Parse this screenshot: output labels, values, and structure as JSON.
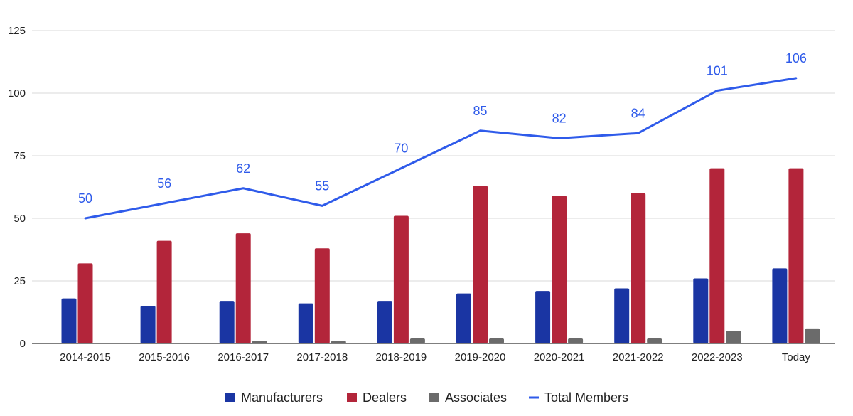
{
  "chart_data": {
    "type": "bar",
    "categories": [
      "2014-2015",
      "2015-2016",
      "2016-2017",
      "2017-2018",
      "2018-2019",
      "2019-2020",
      "2020-2021",
      "2021-2022",
      "2022-2023",
      "Today"
    ],
    "series": [
      {
        "name": "Manufacturers",
        "kind": "bar",
        "color": "#1a35a3",
        "values": [
          18,
          15,
          17,
          16,
          17,
          20,
          21,
          22,
          26,
          30
        ]
      },
      {
        "name": "Dealers",
        "kind": "bar",
        "color": "#b3253a",
        "values": [
          32,
          41,
          44,
          38,
          51,
          63,
          59,
          60,
          70,
          70
        ]
      },
      {
        "name": "Associates",
        "kind": "bar",
        "color": "#6b6b6b",
        "values": [
          0,
          0,
          1,
          1,
          2,
          2,
          2,
          2,
          5,
          6
        ]
      },
      {
        "name": "Total Members",
        "kind": "line",
        "color": "#2f5bea",
        "values": [
          50,
          56,
          62,
          55,
          70,
          85,
          82,
          84,
          101,
          106
        ],
        "data_labels": [
          "50",
          "56",
          "62",
          "55",
          "70",
          "85",
          "82",
          "84",
          "101",
          "106"
        ]
      }
    ],
    "yticks": [
      "0",
      "25",
      "50",
      "75",
      "100",
      "125"
    ],
    "ytick_values": [
      0,
      25,
      50,
      75,
      100,
      125
    ],
    "ylim": [
      0,
      125
    ],
    "title": "",
    "xlabel": "",
    "ylabel": "",
    "grid": true,
    "legend_position": "bottom"
  }
}
